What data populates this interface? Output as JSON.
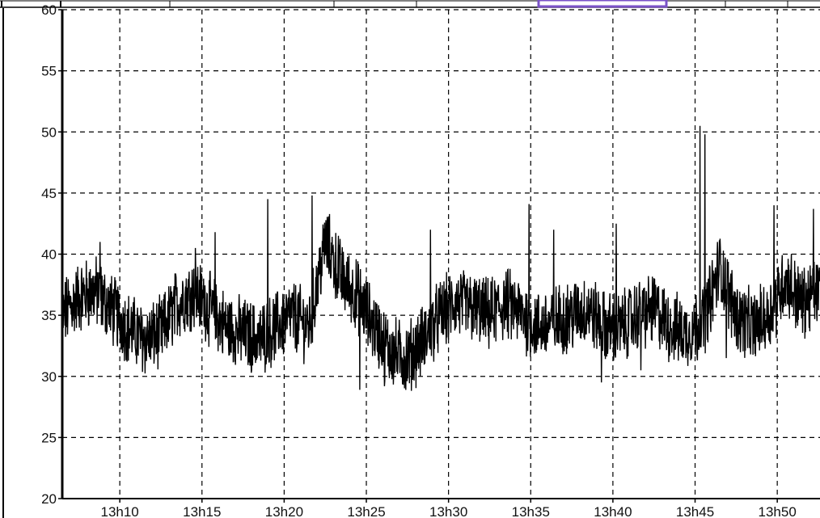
{
  "chart_data": {
    "type": "line",
    "title": "",
    "xlabel": "",
    "ylabel": "",
    "ylim": [
      20,
      60
    ],
    "xlim": [
      "13h06.5",
      "13h53"
    ],
    "grid": true,
    "grid_style": "dashed",
    "legend": "none",
    "line_color": "#000000",
    "y_ticks": [
      20,
      25,
      30,
      35,
      40,
      45,
      50,
      55,
      60
    ],
    "x_ticks": [
      "13h10",
      "13h15",
      "13h20",
      "13h25",
      "13h30",
      "13h35",
      "13h40",
      "13h45",
      "13h50"
    ],
    "x_tick_minutes": [
      10,
      15,
      20,
      25,
      30,
      35,
      40,
      45,
      50
    ],
    "x_unit": "minutes after 13h00",
    "series": [
      {
        "x": [
          6.5,
          7.5,
          8.5,
          9.5,
          10.5,
          11.5,
          12.5,
          13.5,
          14.5,
          15.5,
          16.5,
          17.5,
          18.5,
          19.5,
          20.5,
          21.5,
          22.5,
          23.5,
          24.5,
          25.5,
          26.5,
          27.5,
          28.5,
          29.5,
          30.5,
          31.5,
          32.5,
          33.5,
          34.5,
          35.5,
          36.5,
          37.5,
          38.5,
          39.5,
          40.5,
          41.5,
          42.5,
          43.5,
          44.5,
          45.5,
          46.5,
          47.5,
          48.5,
          49.5,
          50.5,
          51.5,
          52.5
        ],
        "y": [
          35,
          36.5,
          37,
          35.5,
          34,
          33,
          33.5,
          36,
          37,
          35.5,
          34,
          33.5,
          33,
          34,
          35,
          34,
          41,
          38,
          36.5,
          34,
          32,
          31.5,
          33,
          35,
          36,
          35.5,
          35,
          36,
          35,
          34,
          34.5,
          35,
          35.5,
          34,
          34,
          35,
          35.5,
          34,
          33.5,
          34.5,
          39,
          35,
          34,
          35,
          38,
          36,
          37
        ],
        "spikes": [
          {
            "x": 8.8,
            "y": 41
          },
          {
            "x": 14.6,
            "y": 40.5
          },
          {
            "x": 15.8,
            "y": 41.8
          },
          {
            "x": 19.0,
            "y": 44.5
          },
          {
            "x": 21.7,
            "y": 44.8
          },
          {
            "x": 23.3,
            "y": 41.5
          },
          {
            "x": 28.9,
            "y": 42
          },
          {
            "x": 34.9,
            "y": 44.1
          },
          {
            "x": 36.4,
            "y": 42
          },
          {
            "x": 39.3,
            "y": 29.5
          },
          {
            "x": 40.2,
            "y": 42.5
          },
          {
            "x": 41.7,
            "y": 30.5
          },
          {
            "x": 45.3,
            "y": 50.5
          },
          {
            "x": 45.6,
            "y": 49.8
          },
          {
            "x": 46.9,
            "y": 31.5
          },
          {
            "x": 49.8,
            "y": 44
          },
          {
            "x": 52.2,
            "y": 43.7
          },
          {
            "x": 24.6,
            "y": 28.9
          },
          {
            "x": 26.1,
            "y": 29.2
          }
        ]
      }
    ]
  }
}
